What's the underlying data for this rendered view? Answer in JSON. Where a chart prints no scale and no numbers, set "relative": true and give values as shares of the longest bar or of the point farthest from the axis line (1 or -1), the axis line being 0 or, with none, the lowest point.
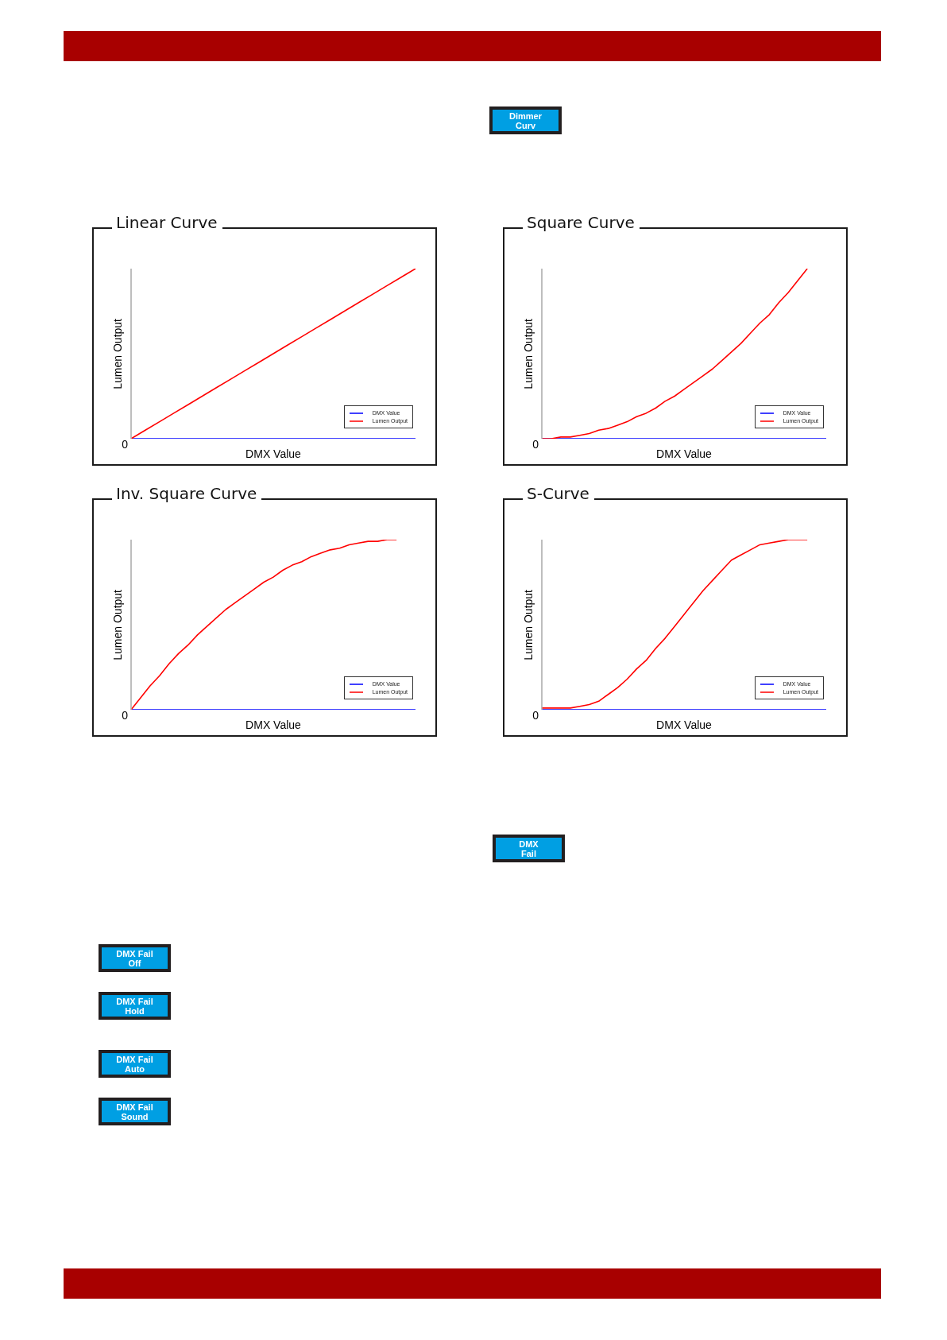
{
  "chart_data": [
    {
      "type": "other",
      "annotations": [
        "Dimmer\nCurv"
      ]
    },
    {
      "type": "line",
      "title": "Linear Curve",
      "xlabel": "DMX Value",
      "ylabel": "Lumen Output",
      "relative": true,
      "legend": "bottom right",
      "annotations": [
        "0"
      ],
      "categories": [
        null,
        null,
        null,
        null,
        null,
        null,
        null,
        null,
        null,
        null,
        null,
        null,
        null,
        null,
        null,
        null,
        null,
        null,
        null,
        null,
        null
      ],
      "series": [
        {
          "name": "DMX Value",
          "color": "#0000ff",
          "values": [
            0,
            0,
            0,
            0,
            0,
            0,
            0,
            0,
            0,
            0,
            0,
            0,
            0,
            0,
            0,
            0,
            0,
            0,
            0,
            0,
            0
          ]
        },
        {
          "name": "Lumen Output",
          "color": "#ff0000",
          "values": [
            0,
            0.05,
            0.1,
            0.15,
            0.2,
            0.25,
            0.3,
            0.35,
            0.4,
            0.45,
            0.5,
            0.55,
            0.6,
            0.65,
            0.7,
            0.75,
            0.8,
            0.85,
            0.9,
            0.95,
            1
          ]
        }
      ]
    },
    {
      "type": "line",
      "title": "Square Curve",
      "xlabel": "DMX Value",
      "ylabel": "Lumen Output",
      "relative": true,
      "legend": "bottom right",
      "annotations": [
        "0"
      ],
      "categories": [
        null,
        null,
        null,
        null,
        null,
        null,
        null,
        null,
        null,
        null,
        null,
        null,
        null,
        null,
        null,
        null,
        null,
        null,
        null,
        null,
        null,
        null,
        null,
        null,
        null,
        null,
        null,
        null,
        null,
        null,
        null
      ],
      "series": [
        {
          "name": "DMX Value",
          "color": "#0000ff",
          "values": [
            0,
            0,
            0,
            0,
            0,
            0,
            0,
            0,
            0,
            0,
            0,
            0,
            0,
            0,
            0,
            0,
            0,
            0,
            0,
            0,
            0,
            0,
            0,
            0,
            0,
            0,
            0,
            0,
            0,
            0,
            0
          ]
        },
        {
          "name": "Lumen Output",
          "color": "#ff0000",
          "values": [
            0,
            0,
            0.01,
            0.01,
            0.02,
            0.03,
            0.05,
            0.06,
            0.08,
            0.1,
            0.13,
            0.15,
            0.18,
            0.22,
            0.25,
            0.29,
            0.33,
            0.37,
            0.41,
            0.46,
            0.51,
            0.56,
            0.62,
            0.68,
            0.73,
            0.8,
            0.86,
            0.93,
            1,
            null,
            null
          ]
        }
      ]
    },
    {
      "type": "line",
      "title": "Inv. Square Curve",
      "xlabel": "DMX Value",
      "ylabel": "Lumen Output",
      "relative": true,
      "legend": "bottom right",
      "annotations": [
        "0"
      ],
      "categories": [
        null,
        null,
        null,
        null,
        null,
        null,
        null,
        null,
        null,
        null,
        null,
        null,
        null,
        null,
        null,
        null,
        null,
        null,
        null,
        null,
        null,
        null,
        null,
        null,
        null,
        null,
        null,
        null,
        null,
        null,
        null
      ],
      "series": [
        {
          "name": "DMX Value",
          "color": "#0000ff",
          "values": [
            0,
            0,
            0,
            0,
            0,
            0,
            0,
            0,
            0,
            0,
            0,
            0,
            0,
            0,
            0,
            0,
            0,
            0,
            0,
            0,
            0,
            0,
            0,
            0,
            0,
            0,
            0,
            0,
            0,
            0,
            0
          ]
        },
        {
          "name": "Lumen Output",
          "color": "#ff0000",
          "values": [
            0,
            0.07,
            0.14,
            0.2,
            0.27,
            0.33,
            0.38,
            0.44,
            0.49,
            0.54,
            0.59,
            0.63,
            0.67,
            0.71,
            0.75,
            0.78,
            0.82,
            0.85,
            0.87,
            0.9,
            0.92,
            0.94,
            0.95,
            0.97,
            0.98,
            0.99,
            0.99,
            1,
            1,
            null,
            null
          ]
        }
      ]
    },
    {
      "type": "line",
      "title": "S-Curve",
      "xlabel": "DMX Value",
      "ylabel": "Lumen Output",
      "relative": true,
      "legend": "bottom right",
      "annotations": [
        "0"
      ],
      "categories": [
        null,
        null,
        null,
        null,
        null,
        null,
        null,
        null,
        null,
        null,
        null,
        null,
        null,
        null,
        null,
        null,
        null,
        null,
        null,
        null,
        null,
        null,
        null,
        null,
        null,
        null,
        null,
        null,
        null,
        null,
        null
      ],
      "series": [
        {
          "name": "DMX Value",
          "color": "#0000ff",
          "values": [
            0,
            0,
            0,
            0,
            0,
            0,
            0,
            0,
            0,
            0,
            0,
            0,
            0,
            0,
            0,
            0,
            0,
            0,
            0,
            0,
            0,
            0,
            0,
            0,
            0,
            0,
            0,
            0,
            0,
            0,
            0
          ]
        },
        {
          "name": "Lumen Output",
          "color": "#ff0000",
          "values": [
            0.01,
            0.01,
            0.01,
            0.01,
            0.02,
            0.03,
            0.05,
            0.09,
            0.13,
            0.18,
            0.24,
            0.29,
            0.36,
            0.42,
            0.49,
            0.56,
            0.63,
            0.7,
            0.76,
            0.82,
            0.88,
            0.91,
            0.94,
            0.97,
            0.98,
            0.99,
            1,
            1,
            1,
            null,
            null
          ]
        }
      ]
    },
    {
      "type": "other",
      "annotations": [
        "DMX\nFail",
        "DMX Fail\nOff",
        "DMX Fail\nHold",
        "DMX Fail\nAuto",
        "DMX Fail\nSound"
      ]
    }
  ]
}
